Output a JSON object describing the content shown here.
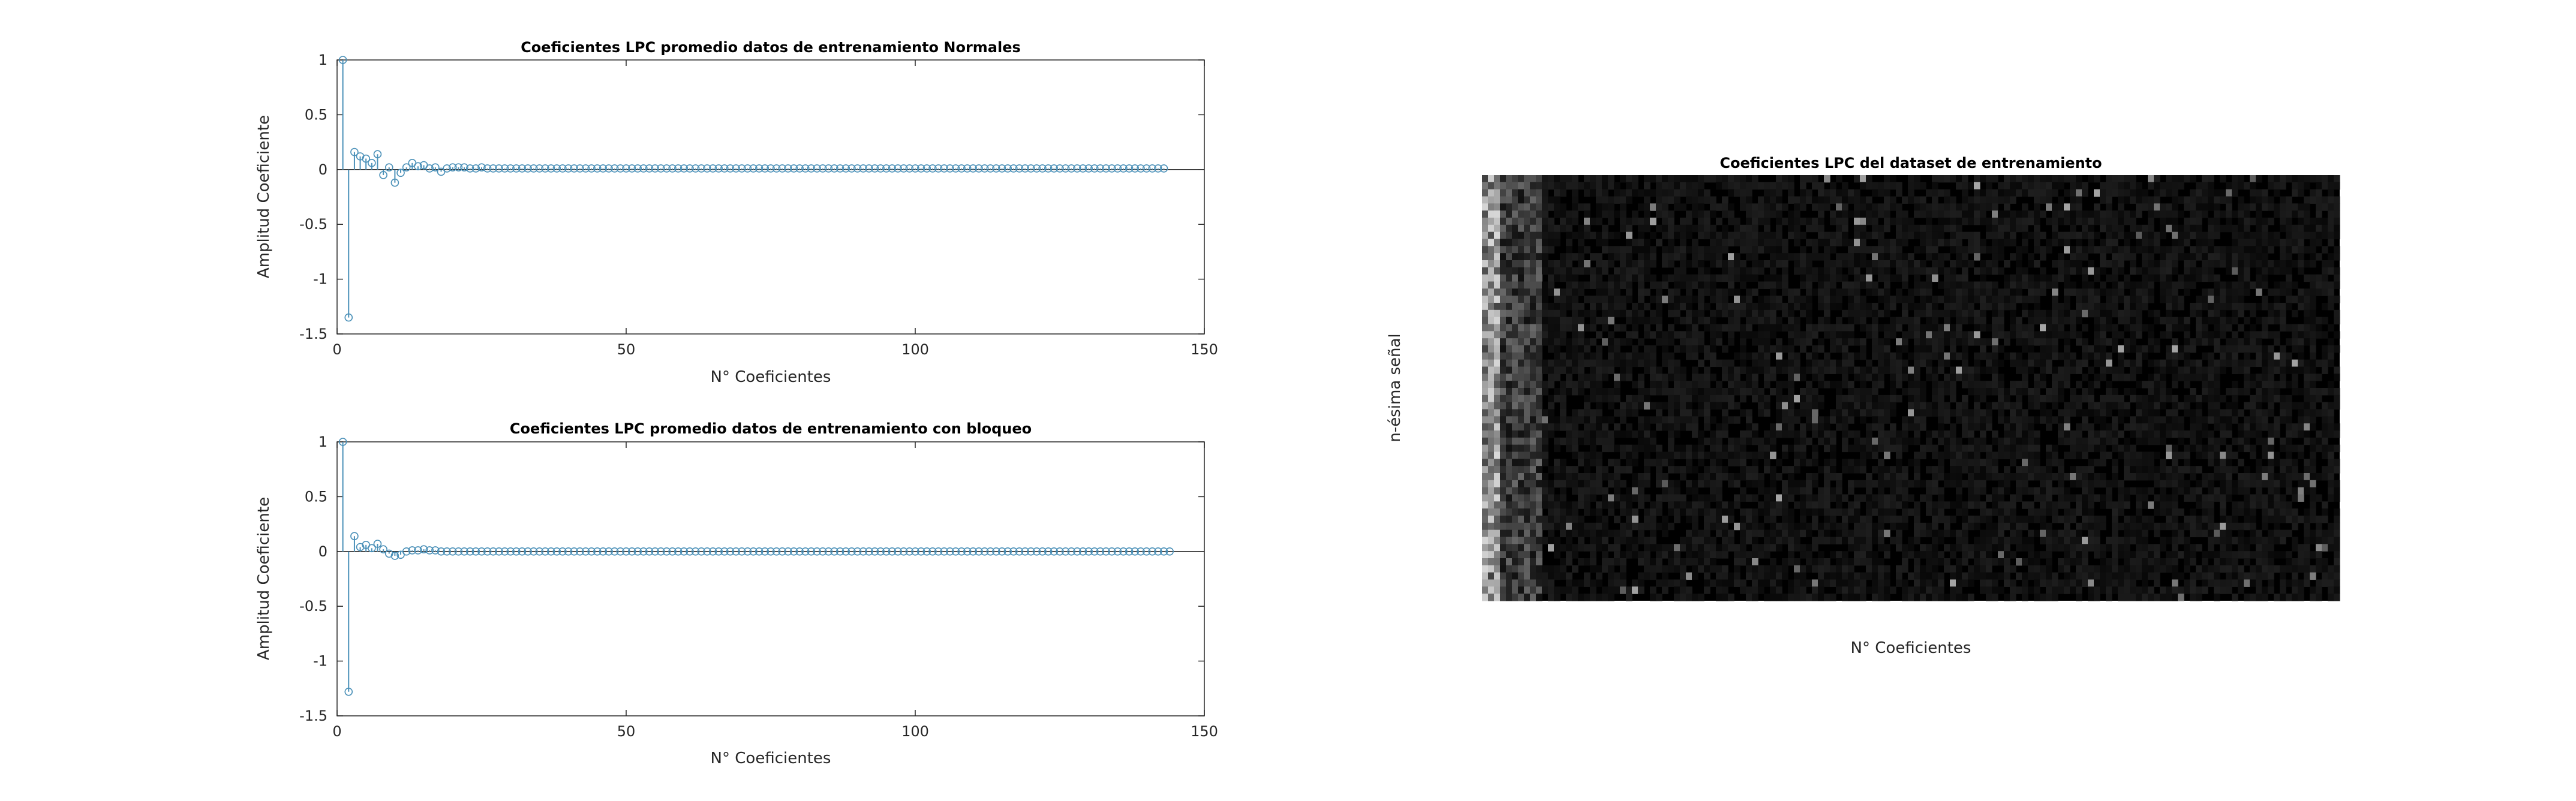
{
  "figure": {
    "colors": {
      "stem": "#4a90b8",
      "axis": "#262626",
      "heatmap_bg": "#000000"
    }
  },
  "chart_data": [
    {
      "type": "stem",
      "title": "Coeficientes LPC promedio datos de entrenamiento Normales",
      "xlabel": "N° Coeficientes",
      "ylabel": "Amplitud Coeficiente",
      "xlim": [
        0,
        150
      ],
      "ylim": [
        -1.5,
        1
      ],
      "xticks": [
        0,
        50,
        100,
        150
      ],
      "yticks": [
        -1.5,
        -1,
        -0.5,
        0,
        0.5,
        1
      ],
      "xtick_labels": [
        "0",
        "50",
        "100",
        "150"
      ],
      "ytick_labels": [
        "-1.5",
        "-1",
        "-0.5",
        "0",
        "0.5",
        "1"
      ],
      "values": [
        1.0,
        -1.35,
        0.16,
        0.12,
        0.1,
        0.06,
        0.14,
        -0.05,
        0.02,
        -0.12,
        -0.03,
        0.02,
        0.06,
        0.03,
        0.04,
        0.01,
        0.02,
        -0.02,
        0.01,
        0.02,
        0.02,
        0.02,
        0.01,
        0.01,
        0.02,
        0.01,
        0.01,
        0.01,
        0.01,
        0.01,
        0.01,
        0.01,
        0.01,
        0.01,
        0.01,
        0.01,
        0.01,
        0.01,
        0.01,
        0.01,
        0.01,
        0.01,
        0.01,
        0.01,
        0.01,
        0.01,
        0.01,
        0.01,
        0.01,
        0.01,
        0.01,
        0.01,
        0.01,
        0.01,
        0.01,
        0.01,
        0.01,
        0.01,
        0.01,
        0.01,
        0.01,
        0.01,
        0.01,
        0.01,
        0.01,
        0.01,
        0.01,
        0.01,
        0.01,
        0.01,
        0.01,
        0.01,
        0.01,
        0.01,
        0.01,
        0.01,
        0.01,
        0.01,
        0.01,
        0.01,
        0.01,
        0.01,
        0.01,
        0.01,
        0.01,
        0.01,
        0.01,
        0.01,
        0.01,
        0.01,
        0.01,
        0.01,
        0.01,
        0.01,
        0.01,
        0.01,
        0.01,
        0.01,
        0.01,
        0.01,
        0.01,
        0.01,
        0.01,
        0.01,
        0.01,
        0.01,
        0.01,
        0.01,
        0.01,
        0.01,
        0.01,
        0.01,
        0.01,
        0.01,
        0.01,
        0.01,
        0.01,
        0.01,
        0.01,
        0.01,
        0.01,
        0.01,
        0.01,
        0.01,
        0.01,
        0.01,
        0.01,
        0.01,
        0.01,
        0.01,
        0.01,
        0.01,
        0.01,
        0.01,
        0.01,
        0.01,
        0.01,
        0.01,
        0.01,
        0.01,
        0.01,
        0.01,
        0.01
      ]
    },
    {
      "type": "stem",
      "title": "Coeficientes LPC promedio datos de entrenamiento con bloqueo",
      "xlabel": "N° Coeficientes",
      "ylabel": "Amplitud Coeficiente",
      "xlim": [
        0,
        150
      ],
      "ylim": [
        -1.5,
        1
      ],
      "xticks": [
        0,
        50,
        100,
        150
      ],
      "yticks": [
        -1.5,
        -1,
        -0.5,
        0,
        0.5,
        1
      ],
      "xtick_labels": [
        "0",
        "50",
        "100",
        "150"
      ],
      "ytick_labels": [
        "-1.5",
        "-1",
        "-0.5",
        "0",
        "0.5",
        "1"
      ],
      "values": [
        1.0,
        -1.28,
        0.14,
        0.04,
        0.06,
        0.03,
        0.07,
        0.02,
        -0.02,
        -0.04,
        -0.03,
        0.0,
        0.01,
        0.01,
        0.02,
        0.01,
        0.01,
        0.0,
        0.0,
        0.0,
        0.0,
        0.0,
        0.0,
        0.0,
        0.0,
        0.0,
        0.0,
        0.0,
        0.0,
        0.0,
        0.0,
        0.0,
        0.0,
        0.0,
        0.0,
        0.0,
        0.0,
        0.0,
        0.0,
        0.0,
        0.0,
        0.0,
        0.0,
        0.0,
        0.0,
        0.0,
        0.0,
        0.0,
        0.0,
        0.0,
        0.0,
        0.0,
        0.0,
        0.0,
        0.0,
        0.0,
        0.0,
        0.0,
        0.0,
        0.0,
        0.0,
        0.0,
        0.0,
        0.0,
        0.0,
        0.0,
        0.0,
        0.0,
        0.0,
        0.0,
        0.0,
        0.0,
        0.0,
        0.0,
        0.0,
        0.0,
        0.0,
        0.0,
        0.0,
        0.0,
        0.0,
        0.0,
        0.0,
        0.0,
        0.0,
        0.0,
        0.0,
        0.0,
        0.0,
        0.0,
        0.0,
        0.0,
        0.0,
        0.0,
        0.0,
        0.0,
        0.0,
        0.0,
        0.0,
        0.0,
        0.0,
        0.0,
        0.0,
        0.0,
        0.0,
        0.0,
        0.0,
        0.0,
        0.0,
        0.0,
        0.0,
        0.0,
        0.0,
        0.0,
        0.0,
        0.0,
        0.0,
        0.0,
        0.0,
        0.0,
        0.0,
        0.0,
        0.0,
        0.0,
        0.0,
        0.0,
        0.0,
        0.0,
        0.0,
        0.0,
        0.0,
        0.0,
        0.0,
        0.0,
        0.0,
        0.0,
        0.0,
        0.0,
        0.0,
        0.0,
        0.0,
        0.0,
        0.0,
        0.0
      ]
    },
    {
      "type": "heatmap",
      "title": "Coeficientes LPC del dataset de entrenamiento",
      "xlabel": "N° Coeficientes",
      "ylabel": "n-ésima señal",
      "columns": 143,
      "rows": 60,
      "colormap": "gray",
      "description": "Bright values concentrated in the first ~10 coefficient columns, remaining cells near black with sparse faint speckles"
    }
  ]
}
